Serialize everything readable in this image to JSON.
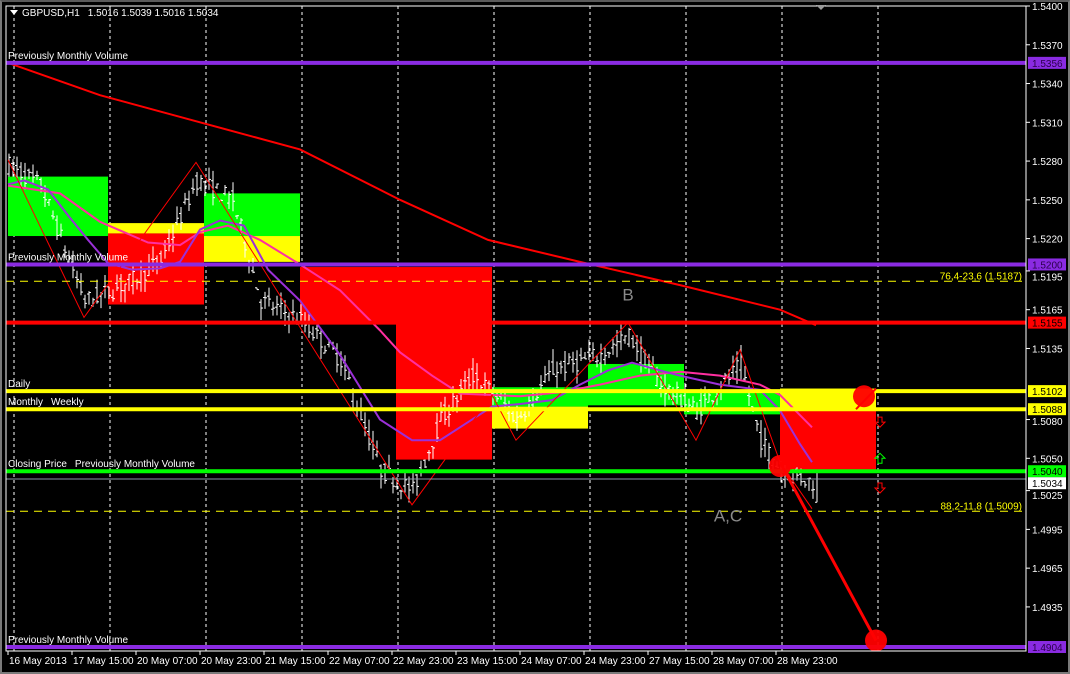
{
  "header": {
    "symbol": "GBPUSD,H1",
    "ohlc": "1.5016 1.5039 1.5016 1.5034",
    "menu_icon": "triangle-down-icon"
  },
  "chart_data": {
    "type": "bar",
    "subtype": "ohlc-price-chart",
    "symbol": "GBPUSD",
    "timeframe": "H1",
    "last_bar": {
      "open": 1.5016,
      "high": 1.5039,
      "low": 1.5016,
      "close": 1.5034
    },
    "ylim": [
      1.4904,
      1.54
    ],
    "grid": true,
    "y_ticks": [
      "1.5400",
      "1.5370",
      "1.5340",
      "1.5310",
      "1.5280",
      "1.5250",
      "1.5220",
      "1.5195",
      "1.5165",
      "1.5135",
      "1.5080",
      "1.5050",
      "1.5025",
      "1.4995",
      "1.4965",
      "1.4935"
    ],
    "x_ticks": [
      "16 May 2013",
      "17 May 15:00",
      "20 May 07:00",
      "20 May 23:00",
      "21 May 15:00",
      "22 May 07:00",
      "22 May 23:00",
      "23 May 15:00",
      "24 May 07:00",
      "24 May 23:00",
      "27 May 15:00",
      "28 May 07:00",
      "28 May 23:00"
    ],
    "x_tick_times": [
      "16 May 23:00",
      "17 May 15:00",
      "20 May 07:00",
      "20 May 23:00",
      "21 May 15:00",
      "22 May 07:00",
      "22 May 23:00",
      "23 May 15:00",
      "24 May 07:00",
      "24 May 23:00",
      "27 May 15:00",
      "28 May 07:00",
      "28 May 23:00"
    ],
    "day_grid": [
      "17 May 00:00",
      "20 May 00:00",
      "21 May 00:00",
      "22 May 00:00",
      "23 May 00:00",
      "24 May 00:00",
      "27 May 00:00",
      "28 May 00:00",
      "29 May 00:00",
      "30 May 00:00"
    ],
    "price_path": [
      [
        "16 May 23:00",
        1.5277
      ],
      [
        "17 May 07:00",
        1.5261
      ],
      [
        "17 May 18:00",
        1.5172
      ],
      [
        "17 May 22:00",
        1.5176
      ],
      [
        "20 May 06:00",
        1.5188
      ],
      [
        "20 May 13:00",
        1.5203
      ],
      [
        "20 May 22:00",
        1.5265
      ],
      [
        "21 May 07:00",
        1.525
      ],
      [
        "21 May 14:00",
        1.5172
      ],
      [
        "22 May 00:00",
        1.5157
      ],
      [
        "22 May 10:00",
        1.5126
      ],
      [
        "22 May 20:00",
        1.5041
      ],
      [
        "23 May 04:00",
        1.5025
      ],
      [
        "23 May 11:00",
        1.508
      ],
      [
        "23 May 19:00",
        1.5114
      ],
      [
        "24 May 02:00",
        1.5095
      ],
      [
        "24 May 06:00",
        1.508
      ],
      [
        "24 May 15:00",
        1.5118
      ],
      [
        "27 May 03:00",
        1.513
      ],
      [
        "27 May 10:00",
        1.5145
      ],
      [
        "27 May 18:00",
        1.5107
      ],
      [
        "28 May 03:00",
        1.5087
      ],
      [
        "28 May 14:00",
        1.5122
      ],
      [
        "28 May 19:00",
        1.5064
      ],
      [
        "29 May 00:00",
        1.5041
      ],
      [
        "29 May 09:00",
        1.503
      ]
    ],
    "zones": [
      {
        "start": "16 May 23:00",
        "end": "20 May 00:00",
        "color": "#00ff00",
        "top": 1.5268,
        "bottom": 1.5222
      },
      {
        "start": "20 May 00:00",
        "end": "21 May 00:00",
        "color": "#ffff00",
        "top": 1.5232,
        "bottom": 1.5224
      },
      {
        "start": "20 May 00:00",
        "end": "21 May 00:00",
        "color": "#ff0000",
        "top": 1.5224,
        "bottom": 1.5169
      },
      {
        "start": "21 May 00:00",
        "end": "22 May 00:00",
        "color": "#00ff00",
        "top": 1.5255,
        "bottom": 1.5222
      },
      {
        "start": "21 May 00:00",
        "end": "22 May 00:00",
        "color": "#ffff00",
        "top": 1.5222,
        "bottom": 1.5202
      },
      {
        "start": "22 May 00:00",
        "end": "23 May 00:00",
        "color": "#ff0000",
        "top": 1.5198,
        "bottom": 1.5154
      },
      {
        "start": "23 May 00:00",
        "end": "24 May 00:00",
        "color": "#ff0000",
        "top": 1.5198,
        "bottom": 1.5049
      },
      {
        "start": "24 May 00:00",
        "end": "27 May 00:00",
        "color": "#00ff00",
        "top": 1.5105,
        "bottom": 1.509
      },
      {
        "start": "24 May 00:00",
        "end": "27 May 00:00",
        "color": "#ffff00",
        "top": 1.509,
        "bottom": 1.5073
      },
      {
        "start": "27 May 00:00",
        "end": "28 May 00:00",
        "color": "#00ff00",
        "top": 1.5123,
        "bottom": 1.5091
      },
      {
        "start": "28 May 00:00",
        "end": "29 May 00:00",
        "color": "#00ff00",
        "top": 1.5101,
        "bottom": 1.5084
      },
      {
        "start": "29 May 00:00",
        "end": "30 May 00:00",
        "color": "#ffff00",
        "top": 1.5104,
        "bottom": 1.5089
      },
      {
        "start": "29 May 00:00",
        "end": "30 May 00:00",
        "color": "#ff0000",
        "top": 1.5089,
        "bottom": 1.5041
      }
    ],
    "moving_averages": [
      {
        "color": "#ff0000",
        "points": [
          [
            "16 May 23:00",
            1.5356
          ],
          [
            "17 May 22:00",
            1.5331
          ],
          [
            "20 May 23:00",
            1.531
          ],
          [
            "22 May 00:00",
            1.5289
          ],
          [
            "23 May 01:00",
            1.525
          ],
          [
            "23 May 23:00",
            1.5219
          ],
          [
            "24 May 22:00",
            1.5202
          ],
          [
            "27 May 23:00",
            1.5184
          ],
          [
            "29 May 00:00",
            1.5165
          ],
          [
            "29 May 09:00",
            1.5153
          ]
        ]
      },
      {
        "color": "#ff2fa0",
        "points": [
          [
            "16 May 23:00",
            1.5261
          ],
          [
            "17 May 12:00",
            1.5255
          ],
          [
            "17 May 22:00",
            1.5233
          ],
          [
            "20 May 10:00",
            1.5217
          ],
          [
            "20 May 18:00",
            1.5215
          ],
          [
            "20 May 23:00",
            1.5225
          ],
          [
            "21 May 06:00",
            1.523
          ],
          [
            "21 May 14:00",
            1.5219
          ],
          [
            "22 May 00:00",
            1.52
          ],
          [
            "22 May 10:00",
            1.518
          ],
          [
            "22 May 20:00",
            1.5149
          ],
          [
            "23 May 01:00",
            1.5132
          ],
          [
            "23 May 09:00",
            1.5114
          ],
          [
            "23 May 16:00",
            1.51
          ],
          [
            "24 May 00:00",
            1.5099
          ],
          [
            "24 May 07:00",
            1.5098
          ],
          [
            "24 May 17:00",
            1.5101
          ],
          [
            "27 May 03:00",
            1.5107
          ],
          [
            "27 May 13:00",
            1.5114
          ],
          [
            "27 May 23:00",
            1.5117
          ],
          [
            "28 May 09:00",
            1.5114
          ],
          [
            "28 May 19:00",
            1.5107
          ],
          [
            "29 May 00:00",
            1.5099
          ],
          [
            "29 May 08:00",
            1.5074
          ]
        ]
      },
      {
        "color": "#9b30d8",
        "points": [
          [
            "16 May 23:00",
            1.5262
          ],
          [
            "17 May 03:00",
            1.5265
          ],
          [
            "17 May 09:00",
            1.5258
          ],
          [
            "17 May 14:00",
            1.5238
          ],
          [
            "17 May 19:00",
            1.5219
          ],
          [
            "20 May 00:00",
            1.5201
          ],
          [
            "20 May 06:00",
            1.5196
          ],
          [
            "20 May 13:00",
            1.5197
          ],
          [
            "20 May 18:00",
            1.5202
          ],
          [
            "20 May 23:00",
            1.5227
          ],
          [
            "21 May 04:00",
            1.5234
          ],
          [
            "21 May 10:00",
            1.523
          ],
          [
            "21 May 16:00",
            1.5196
          ],
          [
            "22 May 00:00",
            1.5172
          ],
          [
            "22 May 10:00",
            1.513
          ],
          [
            "22 May 20:00",
            1.508
          ],
          [
            "23 May 04:00",
            1.5064
          ],
          [
            "23 May 11:00",
            1.5064
          ],
          [
            "23 May 19:00",
            1.508
          ],
          [
            "24 May 00:00",
            1.509
          ],
          [
            "24 May 07:00",
            1.5092
          ],
          [
            "24 May 15:00",
            1.5095
          ],
          [
            "24 May 22:00",
            1.5107
          ],
          [
            "27 May 05:00",
            1.5118
          ],
          [
            "27 May 11:00",
            1.5124
          ],
          [
            "27 May 18:00",
            1.5118
          ],
          [
            "27 May 23:00",
            1.5114
          ],
          [
            "28 May 09:00",
            1.5107
          ],
          [
            "28 May 19:00",
            1.5103
          ],
          [
            "29 May 00:00",
            1.5087
          ],
          [
            "29 May 05:00",
            1.5061
          ],
          [
            "29 May 08:00",
            1.5047
          ]
        ]
      }
    ],
    "zigzag": [
      [
        "16 May 23:00",
        1.5281
      ],
      [
        "17 May 18:00",
        1.5159
      ],
      [
        "20 May 22:00",
        1.5279
      ],
      [
        "23 May 04:00",
        1.5014
      ],
      [
        "24 May 00:00",
        1.5099
      ],
      [
        "24 May 06:00",
        1.5064
      ],
      [
        "27 May 10:00",
        1.5155
      ],
      [
        "28 May 03:00",
        1.5064
      ],
      [
        "28 May 14:00",
        1.5134
      ],
      [
        "29 May 00:00",
        1.5047
      ],
      [
        "29 May 08:00",
        1.5011
      ]
    ],
    "projection": {
      "from": [
        "29 May 00:00",
        1.5047
      ],
      "to": [
        "30 May 00:00",
        1.4909
      ],
      "color": "#ff0000"
    },
    "markers": [
      {
        "name": "target-circle",
        "time": "30 May 00:00",
        "price": 1.4909,
        "color": "#ff0000"
      },
      {
        "name": "entry-circle",
        "time": "29 May 00:00",
        "price": 1.5044,
        "color": "#ff0000"
      },
      {
        "name": "daily-touch-circle",
        "time": "29 May 21:00",
        "price": 1.5098,
        "color": "#ff0000"
      }
    ],
    "arrows": [
      {
        "dir": "down",
        "time": "30 May 01:00",
        "price": 1.5078,
        "color": "#ff0000"
      },
      {
        "dir": "up",
        "time": "30 May 01:00",
        "price": 1.505,
        "color": "#00ff00"
      },
      {
        "dir": "down",
        "time": "30 May 01:00",
        "price": 1.5027,
        "color": "#ff0000"
      }
    ],
    "annotations": [
      {
        "text": "B",
        "time": "27 May 10:00",
        "price": 1.5172
      },
      {
        "text": "A,C",
        "time": "28 May 11:00",
        "price": 1.5001
      }
    ],
    "hlines": [
      {
        "price": 1.5356,
        "color": "#8a2be2",
        "width": 4,
        "tag": "1.5356",
        "labels": [
          "Previously Monthly Volume"
        ]
      },
      {
        "price": 1.52,
        "color": "#8a2be2",
        "width": 4,
        "tag": "1.5200",
        "labels": [
          "Previously Monthly Volume"
        ]
      },
      {
        "price": 1.5155,
        "color": "#ff0000",
        "width": 4,
        "tag": "1.5155",
        "labels": []
      },
      {
        "price": 1.5102,
        "color": "#ffff00",
        "width": 4,
        "tag": "1.5102",
        "labels": [
          "Daily"
        ]
      },
      {
        "price": 1.5088,
        "color": "#ffff00",
        "width": 4,
        "tag": "1.5088",
        "labels": [
          "Monthly",
          "Weekly"
        ]
      },
      {
        "price": 1.504,
        "color": "#00ff00",
        "width": 4,
        "tag": "1.5040",
        "labels": [
          "Closing Price",
          "Previously Monthly Volume"
        ]
      },
      {
        "price": 1.5034,
        "color": "#8c9aa8",
        "width": 1,
        "tag": "1.5034",
        "labels": []
      },
      {
        "price": 1.4904,
        "color": "#8a2be2",
        "width": 4,
        "tag": "1.4904",
        "labels": [
          "Previously Monthly Volume"
        ]
      }
    ],
    "fib_lines": [
      {
        "price": 1.5187,
        "text": "76,4-23,6 (1.5187)",
        "color": "#ffff00"
      },
      {
        "price": 1.5009,
        "text": "88,2-11,8 (1.5009)",
        "color": "#ffff00"
      }
    ]
  }
}
